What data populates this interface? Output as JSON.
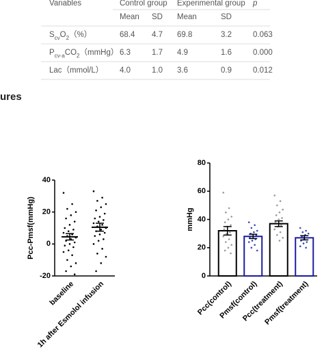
{
  "table": {
    "header": [
      "Variables",
      "Control group",
      "Experimental group",
      "p"
    ],
    "subheader": [
      "Mean",
      "SD",
      "Mean",
      "SD"
    ],
    "rows": [
      {
        "label_parts": [
          {
            "text": "S"
          },
          {
            "text": "cv",
            "sub": true
          },
          {
            "text": "O"
          },
          {
            "text": "2",
            "sub": true
          },
          {
            "text": "（%）"
          }
        ],
        "cells": [
          "68.4",
          "4.7",
          "69.8",
          "3.2",
          "0.063"
        ]
      },
      {
        "label_parts": [
          {
            "text": "P"
          },
          {
            "text": "cv-a",
            "sub": true
          },
          {
            "text": "CO"
          },
          {
            "text": "2",
            "sub": true
          },
          {
            "text": "（mmHg）"
          }
        ],
        "cells": [
          "6.3",
          "1.7",
          "4.9",
          "1.6",
          "0.000"
        ]
      },
      {
        "label_parts": [
          {
            "text": "Lac（mmol/L）"
          }
        ],
        "cells": [
          "4.0",
          "1.0",
          "3.6",
          "0.9",
          "0.012"
        ]
      }
    ]
  },
  "section_heading": "ures",
  "chart_data": [
    {
      "type": "dot",
      "y_label": "Pcc-Pmsf(mmHg)",
      "categories": [
        "baseline",
        "1h after  Esmolol infusion"
      ],
      "means": [
        4.5,
        10.5
      ],
      "errors": [
        2,
        2.5
      ],
      "points": [
        [
          32,
          25,
          22,
          20,
          18,
          16,
          14,
          12,
          10,
          9,
          8,
          7,
          6,
          5,
          4,
          3,
          2,
          1,
          0,
          -1,
          -2,
          -4,
          -5,
          -7,
          -10,
          -12,
          -14,
          -17,
          -19
        ],
        [
          33,
          29,
          27,
          25,
          23,
          21,
          19,
          17,
          16,
          15,
          14,
          13,
          12,
          11,
          10,
          9,
          8,
          7,
          6,
          5,
          3,
          2,
          0,
          -3,
          -6,
          -8,
          -12,
          -17
        ]
      ],
      "color": "#000000",
      "ylim": [
        -20,
        40
      ],
      "yticks": [
        -20,
        0,
        20,
        40
      ]
    },
    {
      "type": "bar",
      "y_label": "mmHg",
      "categories": [
        "Pcc(control)",
        "Pmsf(control)",
        "Pcc(treatment)",
        "Pmsf(treatment)"
      ],
      "values": [
        32,
        28,
        37,
        27
      ],
      "errors": [
        3,
        1.5,
        2,
        1.5
      ],
      "colors": [
        "#000000",
        "#1a1aa0",
        "#000000",
        "#1a1aa0"
      ],
      "point_colors": [
        "#999999",
        "#3344bb",
        "#999999",
        "#3344bb"
      ],
      "points": [
        [
          59,
          48,
          45,
          42,
          40,
          38,
          36,
          35,
          33,
          31,
          30,
          28,
          26,
          24,
          22,
          20,
          18,
          16
        ],
        [
          38,
          36,
          34,
          32,
          31,
          30,
          29,
          28,
          27,
          26,
          25,
          24,
          22,
          20,
          18
        ],
        [
          57,
          53,
          50,
          47,
          45,
          43,
          41,
          40,
          38,
          36,
          35,
          33,
          31,
          29,
          27,
          25
        ],
        [
          34,
          32,
          31,
          30,
          29,
          28,
          27,
          26,
          25,
          24,
          23,
          21,
          20
        ]
      ],
      "ylim": [
        0,
        80
      ],
      "yticks": [
        0,
        20,
        40,
        60,
        80
      ]
    }
  ]
}
